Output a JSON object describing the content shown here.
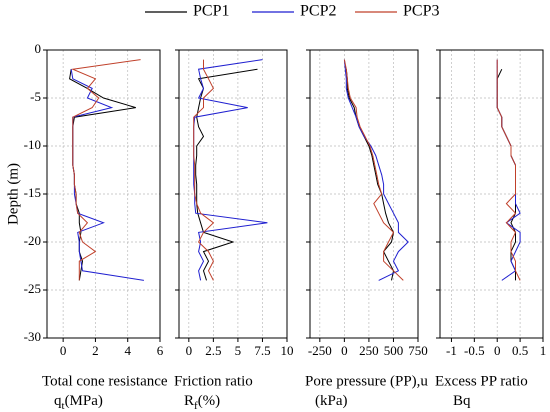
{
  "chart_data": [
    {
      "type": "line",
      "xlabel": "Total cone resistance",
      "xunit": [
        "q",
        "t",
        "(MPa)"
      ],
      "ylabel": "Depth (m)",
      "ylim": [
        -30,
        0
      ],
      "yticks": [
        0,
        -5,
        -10,
        -15,
        -20,
        -25,
        -30
      ],
      "depth": [
        -1,
        -2,
        -3,
        -4,
        -5,
        -6,
        -7,
        -8,
        -9,
        -10,
        -11,
        -12,
        -13,
        -14,
        -15,
        -16,
        -17,
        -18,
        -19,
        -20,
        -21,
        -22,
        -23,
        -24
      ],
      "xlim": [
        -1,
        6
      ],
      "xticks": [
        0,
        2,
        4,
        6
      ],
      "grid": true,
      "series": [
        {
          "name": "PCP1",
          "color": "#000000",
          "values": [
            null,
            0.5,
            0.4,
            1.5,
            2.5,
            4.5,
            0.7,
            0.6,
            0.6,
            0.6,
            0.6,
            0.6,
            0.7,
            0.7,
            0.8,
            0.8,
            1.0,
            1.0,
            1.1,
            1.0,
            1.0,
            1.2,
            1.1,
            1.0
          ]
        },
        {
          "name": "PCP2",
          "color": "#1f1fd0",
          "values": [
            null,
            0.5,
            0.6,
            1.8,
            1.5,
            3.0,
            0.6,
            0.6,
            0.6,
            0.6,
            0.6,
            0.6,
            0.7,
            0.7,
            0.7,
            0.8,
            0.9,
            2.5,
            0.9,
            1.0,
            1.0,
            1.1,
            1.2,
            5.0
          ]
        },
        {
          "name": "PCP3",
          "color": "#c0402a",
          "values": [
            4.8,
            0.6,
            2.0,
            1.5,
            2.2,
            1.8,
            0.6,
            0.6,
            0.6,
            0.6,
            0.6,
            0.6,
            0.7,
            0.7,
            0.8,
            0.8,
            0.9,
            1.5,
            1.0,
            1.2,
            2.0,
            1.0,
            1.0,
            1.0
          ]
        }
      ]
    },
    {
      "type": "line",
      "xlabel": "Friction ratio",
      "xunit": [
        "R",
        "f",
        "(%)"
      ],
      "xlim": [
        -1,
        10
      ],
      "xticks": [
        0,
        2.5,
        5,
        7.5,
        10
      ],
      "grid": true,
      "series": [
        {
          "color": "#000000",
          "values": [
            null,
            7.0,
            1.0,
            1.5,
            1.2,
            1.0,
            0.8,
            1.0,
            1.5,
            0.8,
            0.8,
            0.7,
            0.7,
            0.8,
            0.8,
            0.8,
            0.9,
            1.2,
            1.5,
            4.5,
            1.5,
            2.0,
            1.5,
            1.8
          ]
        },
        {
          "color": "#1f1fd0",
          "values": [
            7.5,
            1.0,
            1.2,
            1.5,
            1.0,
            6.0,
            0.6,
            0.5,
            0.5,
            0.5,
            0.5,
            0.5,
            0.5,
            0.5,
            0.6,
            0.6,
            0.7,
            8.0,
            1.0,
            1.2,
            1.0,
            1.5,
            1.0,
            1.2
          ]
        },
        {
          "color": "#c0402a",
          "values": [
            1.5,
            1.5,
            2.0,
            2.5,
            1.5,
            1.5,
            0.5,
            0.5,
            0.5,
            0.5,
            0.5,
            0.6,
            0.6,
            0.6,
            0.6,
            0.8,
            1.2,
            2.5,
            1.5,
            1.0,
            2.0,
            2.5,
            2.0,
            2.5
          ]
        }
      ]
    },
    {
      "type": "line",
      "xlabel": "Pore pressure (PP),u",
      "xunit": [
        "(kPa)"
      ],
      "xlim": [
        -350,
        750
      ],
      "xticks": [
        -250,
        0,
        250,
        500,
        750
      ],
      "grid": true,
      "series": [
        {
          "color": "#000000",
          "values": [
            null,
            20,
            30,
            30,
            50,
            100,
            120,
            150,
            200,
            250,
            280,
            300,
            320,
            340,
            380,
            400,
            420,
            450,
            500,
            480,
            400,
            450,
            500,
            480
          ]
        },
        {
          "color": "#1f1fd0",
          "values": [
            0,
            10,
            20,
            20,
            40,
            80,
            120,
            150,
            200,
            270,
            320,
            350,
            380,
            400,
            400,
            450,
            500,
            550,
            550,
            650,
            550,
            500,
            550,
            350
          ]
        },
        {
          "color": "#c0402a",
          "values": [
            0,
            20,
            30,
            40,
            60,
            120,
            130,
            160,
            210,
            260,
            290,
            310,
            330,
            350,
            380,
            300,
            350,
            400,
            500,
            450,
            400,
            400,
            500,
            600
          ]
        }
      ]
    },
    {
      "type": "line",
      "xlabel": "Excess PP ratio",
      "xunit": [
        "Bq"
      ],
      "xlim": [
        -1.25,
        1
      ],
      "xticks": [
        -1,
        -0.5,
        0,
        0.5,
        1
      ],
      "grid": true,
      "series": [
        {
          "color": "#000000",
          "values": [
            null,
            0.1,
            0.0,
            0.0,
            0.0,
            0.0,
            0.1,
            0.1,
            0.2,
            0.3,
            0.3,
            0.4,
            0.4,
            0.4,
            0.4,
            0.4,
            0.4,
            0.3,
            0.4,
            0.4,
            0.3,
            0.3,
            0.4,
            0.4
          ]
        },
        {
          "color": "#1f1fd0",
          "values": [
            0.0,
            0.0,
            0.0,
            0.0,
            0.0,
            0.0,
            0.1,
            0.1,
            0.2,
            0.3,
            0.3,
            0.4,
            0.4,
            0.4,
            0.4,
            0.4,
            0.5,
            0.2,
            0.5,
            0.5,
            0.4,
            0.3,
            0.4,
            0.1
          ]
        },
        {
          "color": "#c0402a",
          "values": [
            0.0,
            0.0,
            0.0,
            0.0,
            0.0,
            0.0,
            0.1,
            0.1,
            0.2,
            0.3,
            0.3,
            0.4,
            0.4,
            0.4,
            0.4,
            0.2,
            0.4,
            0.2,
            0.4,
            0.3,
            0.3,
            0.4,
            0.4,
            0.5
          ]
        }
      ]
    }
  ]
}
